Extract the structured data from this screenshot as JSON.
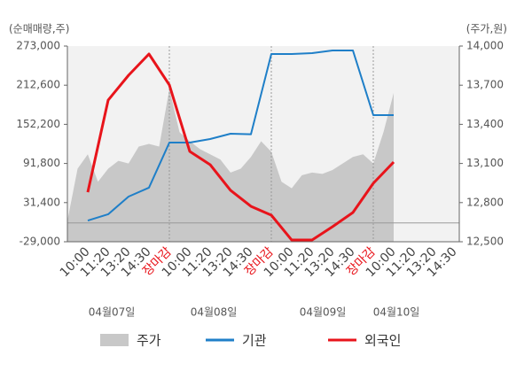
{
  "chart_data": {
    "type": "line",
    "y_label": "(순매매량,주)",
    "y2_label": "(주가,원)",
    "ylim": [
      -29000,
      273000
    ],
    "yticks": [
      {
        "value": -29000,
        "label": "-29,000"
      },
      {
        "value": 31400,
        "label": "31,400"
      },
      {
        "value": 91800,
        "label": "91,800"
      },
      {
        "value": 152200,
        "label": "152,200"
      },
      {
        "value": 212600,
        "label": "212,600"
      },
      {
        "value": 273000,
        "label": "273,000"
      }
    ],
    "y2lim": [
      12500,
      14000
    ],
    "y2ticks": [
      {
        "value": 12500,
        "label": "12,500"
      },
      {
        "value": 12800,
        "label": "12,800"
      },
      {
        "value": 13100,
        "label": "13,100"
      },
      {
        "value": 13400,
        "label": "13,400"
      },
      {
        "value": 13700,
        "label": "13,700"
      },
      {
        "value": 14000,
        "label": "14,000"
      }
    ],
    "categories": [
      "10:00",
      "11:20",
      "13:20",
      "14:30",
      "장마감",
      "10:00",
      "11:20",
      "13:20",
      "14:30",
      "장마감",
      "10:00",
      "11:20",
      "13:20",
      "14:30",
      "장마감",
      "10:00",
      "11:20",
      "13:20",
      "14:30"
    ],
    "days": [
      "04월07일",
      "04월08일",
      "04월09일",
      "04월10일"
    ],
    "price": {
      "name": "주가",
      "color": "#c8c8c8",
      "axis": "y2",
      "x": [
        -1,
        -0.5,
        0,
        0.5,
        1,
        1.5,
        2,
        2.5,
        3,
        3.5,
        4,
        4.5,
        5,
        5.5,
        6,
        6.5,
        7,
        7.5,
        8,
        8.5,
        9,
        9.5,
        10,
        10.5,
        11,
        11.5,
        12,
        12.5,
        13,
        13.5,
        14,
        14.5,
        15
      ],
      "values": [
        12660,
        13060,
        13170,
        12960,
        13060,
        13120,
        13100,
        13230,
        13250,
        13230,
        13670,
        13340,
        13270,
        13210,
        13170,
        13130,
        13030,
        13060,
        13150,
        13270,
        13190,
        12960,
        12910,
        13010,
        13030,
        13020,
        13050,
        13100,
        13150,
        13170,
        13100,
        13340,
        13640
      ]
    },
    "series": [
      {
        "name": "기관",
        "color": "#1f7fc8",
        "values": [
          3700,
          13400,
          40700,
          54400,
          124000,
          124000,
          129500,
          137700,
          136900,
          260700,
          260700,
          262000,
          266200,
          266200,
          166400,
          166400,
          null,
          null,
          null
        ]
      },
      {
        "name": "외국인",
        "color": "#e8141b",
        "values": [
          47500,
          189600,
          227900,
          260700,
          212900,
          110400,
          89900,
          50300,
          25700,
          12000,
          -26300,
          -26300,
          -5800,
          16100,
          61200,
          94000,
          null,
          null,
          null
        ]
      }
    ]
  }
}
